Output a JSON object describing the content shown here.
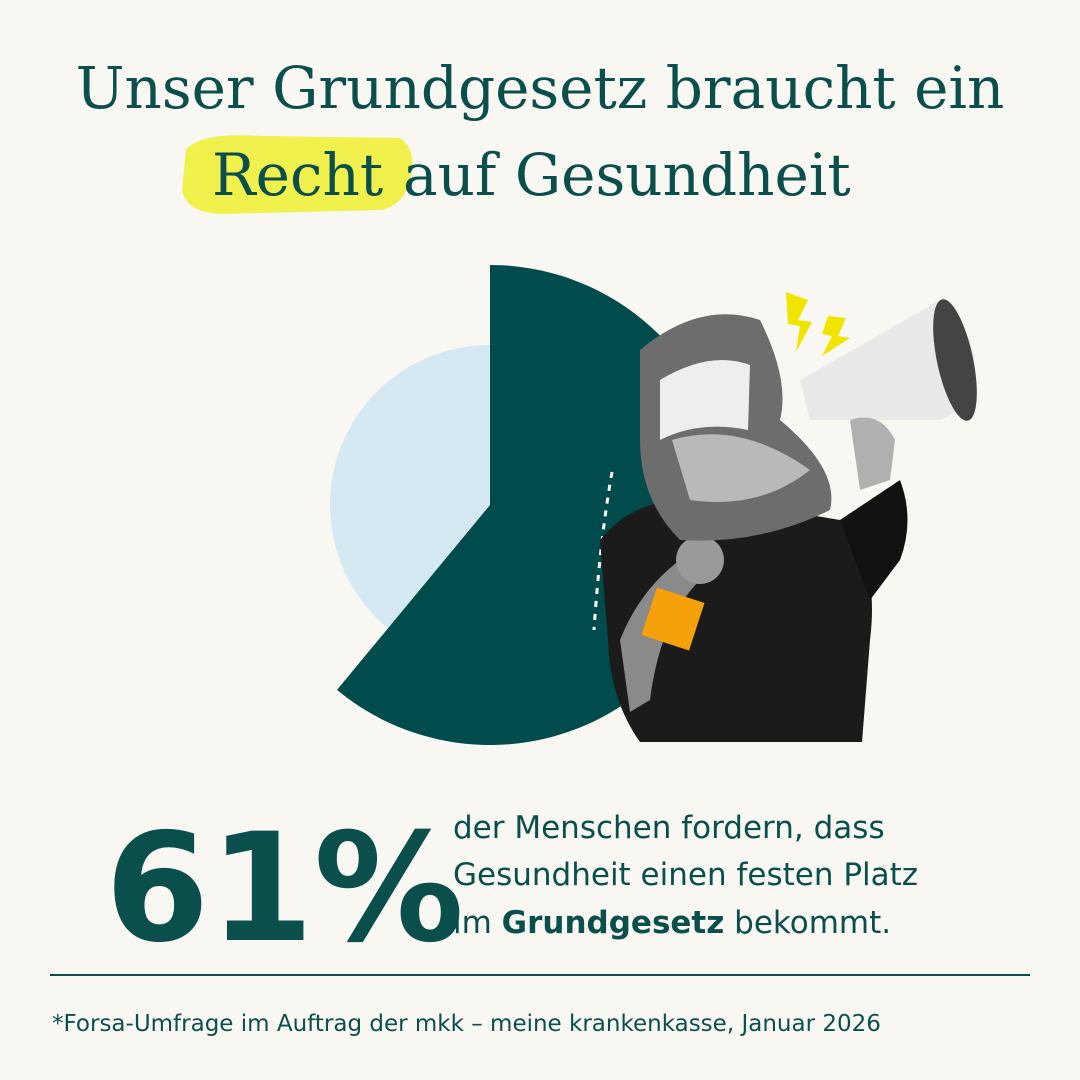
{
  "chart_data": {
    "type": "pie",
    "title": {
      "line1": "Unser Grundgesetz braucht ein",
      "highlight": "Recht",
      "line2_rest": "auf Gesundheit"
    },
    "values": [
      61,
      39
    ],
    "value_labels": [
      "61%",
      null
    ],
    "colors": [
      "#004b4b",
      "#d4e9f2"
    ],
    "description": {
      "line1": "der Menschen fordern, dass",
      "line2": "Gesundheit einen festen Platz",
      "line3_prefix": "im",
      "line3_bold": "Grundgesetz",
      "line3_suffix": "bekommt."
    },
    "footnote": "*Forsa-Umfrage im Auftrag der mkk – meine krankenkasse, Januar 2026"
  }
}
